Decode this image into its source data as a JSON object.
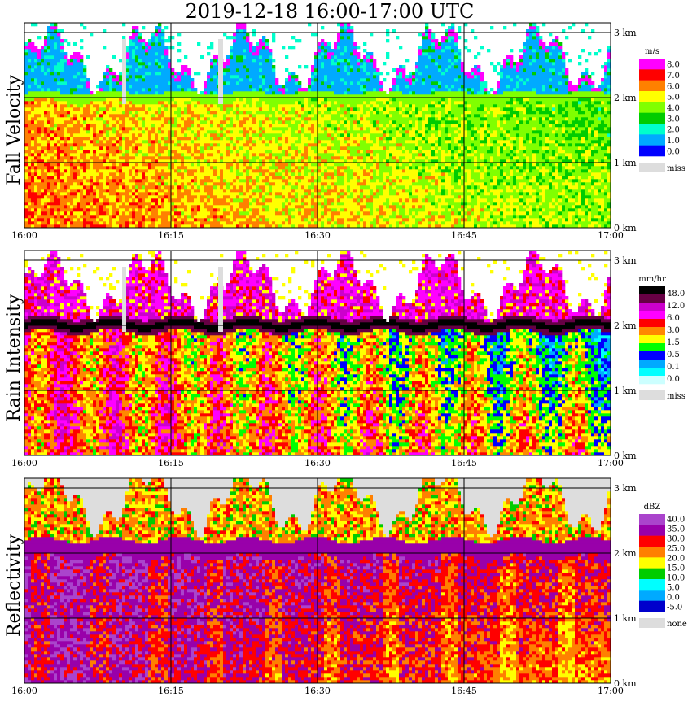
{
  "title": "2019-12-18   16:00-17:00 UTC",
  "chart_data": [
    {
      "type": "heatmap",
      "title": "Fall Velocity",
      "x_ticks": [
        "16:00",
        "16:15",
        "16:30",
        "16:45",
        "17:00"
      ],
      "y_ticks": [
        "0 km",
        "1 km",
        "2 km",
        "3 km"
      ],
      "legend": {
        "unit": "m/s",
        "levels": [
          "8.0",
          "7.0",
          "6.0",
          "5.0",
          "4.0",
          "3.0",
          "2.0",
          "1.0",
          "0.0"
        ],
        "colors": [
          "#ff00ff",
          "#ff0000",
          "#ff8000",
          "#ffff00",
          "#80ff00",
          "#00cc00",
          "#00ffcc",
          "#00aaff",
          "#0000ff"
        ],
        "missing_label": "miss",
        "missing_color": "#dddddd"
      }
    },
    {
      "type": "heatmap",
      "title": "Rain Intensity",
      "x_ticks": [
        "16:00",
        "16:15",
        "16:30",
        "16:45",
        "17:00"
      ],
      "y_ticks": [
        "0 km",
        "1 km",
        "2 km",
        "3 km"
      ],
      "legend": {
        "unit": "mm/hr",
        "levels": [
          "48.0",
          "12.0",
          "6.0",
          "3.0",
          "1.5",
          "0.5",
          "0.1",
          "0.0"
        ],
        "colors": [
          "#000000",
          "#660044",
          "#cc00cc",
          "#ff00ff",
          "#ff0000",
          "#ff8800",
          "#ffff00",
          "#00ff00",
          "#0000ff",
          "#00aaff",
          "#00ffff",
          "#ccffff"
        ],
        "missing_label": "miss",
        "missing_color": "#dddddd"
      }
    },
    {
      "type": "heatmap",
      "title": "Reflectivity",
      "x_ticks": [
        "16:00",
        "16:15",
        "16:30",
        "16:45",
        "17:00"
      ],
      "y_ticks": [
        "0 km",
        "1 km",
        "2 km",
        "3 km"
      ],
      "legend": {
        "unit": "dBZ",
        "levels": [
          "40.0",
          "35.0",
          "30.0",
          "25.0",
          "20.0",
          "15.0",
          "10.0",
          "5.0",
          "0.0",
          "-5.0"
        ],
        "colors": [
          "#aa44cc",
          "#9900aa",
          "#ff0000",
          "#ff8000",
          "#ffff00",
          "#00cc00",
          "#00ffff",
          "#00aaff",
          "#0000cc"
        ],
        "missing_label": "none",
        "missing_color": "#dddddd"
      }
    }
  ]
}
